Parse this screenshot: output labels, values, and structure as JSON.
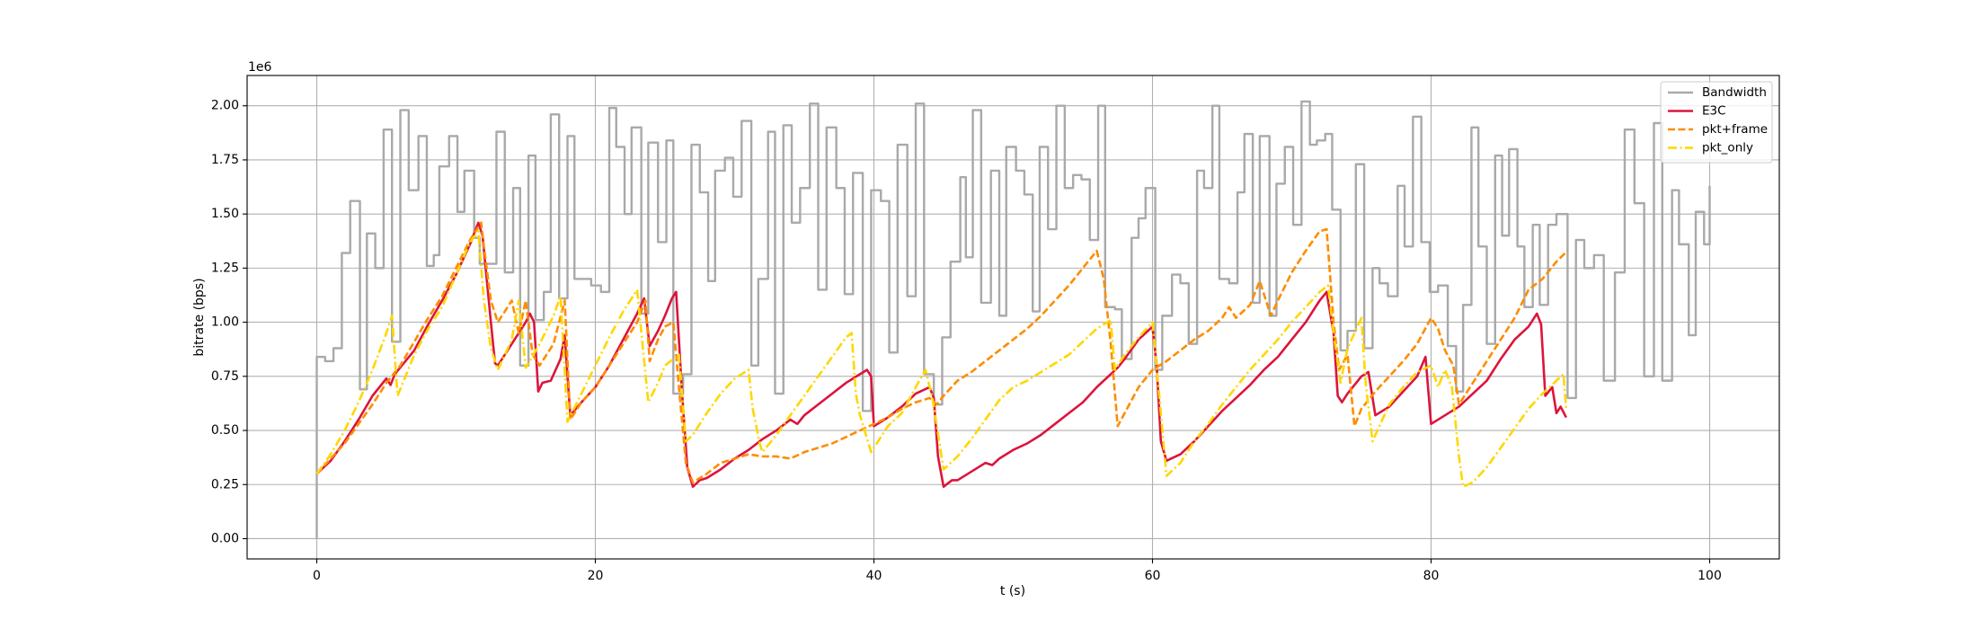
{
  "chart_data": {
    "type": "line",
    "offset_text": "1e6",
    "xlabel": "t (s)",
    "ylabel": "bitrate (bps)",
    "xlim": [
      -5,
      105
    ],
    "ylim": [
      -0.0935,
      2.14
    ],
    "xticks": [
      0,
      20,
      40,
      60,
      80,
      100
    ],
    "yticks": [
      {
        "value": 0,
        "label": "0.00"
      },
      {
        "value": 0.25,
        "label": "0.25"
      },
      {
        "value": 0.5,
        "label": "0.50"
      },
      {
        "value": 0.75,
        "label": "0.75"
      },
      {
        "value": 1,
        "label": "1.00"
      },
      {
        "value": 1.25,
        "label": "1.25"
      },
      {
        "value": 1.5,
        "label": "1.50"
      },
      {
        "value": 1.75,
        "label": "1.75"
      },
      {
        "value": 2,
        "label": "2.00"
      }
    ],
    "grid": true,
    "legend": "upper right",
    "series": [
      {
        "name": "Bandwidth",
        "color": "#a9a9a9",
        "style": "solid",
        "drawstyle": "steps",
        "x": [
          0,
          0,
          0.6,
          1.2,
          1.8,
          2.4,
          3.1,
          3.6,
          4.2,
          4.8,
          5.4,
          6.0,
          6.6,
          7.3,
          7.9,
          8.4,
          8.8,
          9.5,
          10.1,
          10.6,
          11.3,
          11.7,
          12.9,
          13.5,
          14.1,
          14.6,
          15.2,
          15.7,
          16.3,
          16.8,
          17.4,
          18.0,
          18.5,
          19.7,
          20.4,
          21.0,
          21.5,
          22.1,
          22.6,
          23.3,
          23.8,
          24.5,
          25.1,
          25.6,
          26.3,
          26.9,
          27.5,
          28.1,
          28.6,
          29.3,
          29.9,
          30.5,
          31.2,
          31.7,
          32.4,
          32.9,
          33.5,
          34.1,
          34.7,
          35.4,
          36.0,
          36.6,
          37.3,
          37.9,
          38.5,
          39.2,
          39.8,
          40.5,
          41.1,
          41.7,
          42.4,
          43.0,
          43.6,
          44.3,
          44.9,
          45.5,
          46.2,
          46.6,
          47.1,
          47.7,
          48.4,
          49.0,
          49.5,
          50.2,
          50.8,
          51.4,
          51.9,
          52.5,
          53.1,
          53.7,
          54.3,
          54.9,
          55.5,
          56.1,
          56.6,
          57.3,
          57.8,
          58.5,
          59.0,
          59.5,
          60.2,
          60.7,
          61.4,
          62.0,
          62.6,
          63.2,
          63.7,
          64.3,
          64.8,
          65.5,
          66.1,
          66.6,
          67.2,
          67.7,
          68.4,
          68.9,
          69.5,
          70.1,
          70.7,
          71.3,
          71.8,
          72.4,
          72.9,
          73.5,
          74.0,
          74.6,
          75.2,
          75.8,
          76.3,
          76.9,
          77.6,
          78.1,
          78.7,
          79.3,
          79.9,
          80.5,
          81.2,
          81.8,
          82.3,
          82.9,
          83.4,
          84.0,
          84.6,
          85.1,
          85.6,
          86.2,
          86.7,
          87.3,
          87.8,
          88.4,
          89.0,
          89.8,
          90.4,
          91.0,
          91.7,
          92.4,
          93.2,
          93.9,
          94.6,
          95.3,
          96.0,
          96.6,
          97.3,
          97.8,
          98.5,
          99.0,
          99.6,
          100
        ],
        "values": [
          0,
          0.84,
          0.82,
          0.88,
          1.32,
          1.56,
          0.69,
          1.41,
          1.25,
          1.89,
          0.91,
          1.98,
          1.61,
          1.86,
          1.26,
          1.31,
          1.72,
          1.86,
          1.51,
          1.7,
          1.39,
          1.27,
          1.88,
          1.23,
          1.62,
          0.8,
          1.77,
          1.01,
          1.14,
          1.96,
          1.11,
          1.86,
          1.2,
          1.17,
          1.14,
          1.99,
          1.81,
          1.5,
          1.9,
          1.04,
          1.83,
          1.37,
          1.84,
          0.67,
          0.76,
          1.82,
          1.6,
          1.19,
          1.7,
          1.76,
          1.58,
          1.93,
          0.8,
          1.2,
          1.88,
          0.67,
          1.91,
          1.46,
          1.62,
          2.01,
          1.15,
          1.9,
          1.62,
          1.13,
          1.69,
          0.59,
          1.61,
          1.56,
          0.86,
          1.82,
          1.12,
          2.01,
          0.76,
          0.62,
          0.93,
          1.28,
          1.67,
          1.3,
          1.98,
          1.09,
          1.7,
          1.03,
          1.81,
          1.7,
          1.59,
          1.05,
          1.81,
          1.43,
          2.0,
          1.62,
          1.68,
          1.66,
          1.38,
          2.0,
          1.07,
          1.06,
          0.83,
          1.39,
          1.48,
          1.62,
          0.78,
          1.03,
          1.22,
          1.18,
          0.9,
          1.7,
          1.62,
          2.0,
          1.2,
          1.18,
          1.6,
          1.87,
          1.09,
          1.86,
          1.03,
          1.64,
          1.81,
          1.45,
          2.02,
          1.82,
          1.84,
          1.87,
          1.52,
          0.87,
          0.96,
          1.73,
          0.88,
          1.25,
          1.18,
          1.12,
          1.63,
          1.35,
          1.95,
          1.37,
          1.14,
          1.17,
          0.89,
          0.68,
          1.08,
          1.9,
          1.35,
          0.9,
          1.77,
          1.4,
          1.8,
          1.35,
          1.07,
          1.45,
          1.08,
          1.45,
          1.5,
          0.65,
          1.38,
          1.25,
          1.31,
          0.73,
          1.23,
          1.89,
          1.55,
          0.75,
          1.92,
          0.73,
          1.61,
          1.36,
          0.94,
          1.51,
          1.36,
          1.63
        ]
      },
      {
        "name": "E3C",
        "color": "#dc143c",
        "style": "solid",
        "x": [
          0,
          1,
          2,
          3,
          4,
          5,
          5.3,
          5.6,
          7,
          8,
          9,
          10,
          11,
          11.6,
          11.9,
          12.5,
          12.8,
          13,
          14,
          15,
          15.3,
          15.6,
          15.9,
          16.2,
          16.8,
          17.5,
          17.8,
          18.2,
          19,
          20,
          21,
          22,
          23,
          23.5,
          23.9,
          24.5,
          25,
          25.5,
          25.8,
          26.2,
          26.6,
          27,
          27.5,
          28,
          29,
          30,
          31,
          32,
          33,
          34,
          34.5,
          35,
          36,
          37,
          38,
          38.5,
          39,
          39.5,
          39.8,
          40,
          41,
          42,
          43,
          44,
          44.3,
          44.6,
          45,
          45.6,
          46,
          47,
          48,
          48.5,
          49,
          50,
          51,
          52,
          53,
          54,
          55,
          56,
          57,
          57.5,
          58,
          59,
          60,
          60.3,
          60.6,
          61,
          62,
          63,
          64,
          65,
          66,
          67,
          68,
          69,
          70,
          71,
          72,
          72.5,
          73,
          73.3,
          73.6,
          74,
          75,
          75.5,
          76,
          77,
          78,
          79,
          79.6,
          80,
          81,
          82,
          83,
          84,
          85,
          86,
          87,
          87.6,
          87.9,
          88.2,
          88.7,
          89,
          89.3,
          89.7
        ],
        "values": [
          0.3,
          0.36,
          0.45,
          0.55,
          0.66,
          0.74,
          0.71,
          0.76,
          0.87,
          0.99,
          1.1,
          1.22,
          1.36,
          1.46,
          1.4,
          1.0,
          0.81,
          0.8,
          0.9,
          1.0,
          1.04,
          1.0,
          0.68,
          0.72,
          0.73,
          0.83,
          0.94,
          0.57,
          0.63,
          0.7,
          0.8,
          0.92,
          1.04,
          1.11,
          0.89,
          0.96,
          1.03,
          1.11,
          1.14,
          0.7,
          0.33,
          0.24,
          0.27,
          0.28,
          0.32,
          0.37,
          0.41,
          0.46,
          0.5,
          0.55,
          0.53,
          0.57,
          0.62,
          0.67,
          0.72,
          0.74,
          0.76,
          0.78,
          0.75,
          0.52,
          0.56,
          0.61,
          0.67,
          0.7,
          0.65,
          0.38,
          0.24,
          0.27,
          0.27,
          0.31,
          0.35,
          0.34,
          0.37,
          0.41,
          0.44,
          0.48,
          0.53,
          0.58,
          0.63,
          0.7,
          0.76,
          0.79,
          0.83,
          0.92,
          0.98,
          0.8,
          0.45,
          0.36,
          0.39,
          0.45,
          0.52,
          0.59,
          0.65,
          0.71,
          0.78,
          0.84,
          0.92,
          1.0,
          1.1,
          1.14,
          0.95,
          0.66,
          0.63,
          0.67,
          0.75,
          0.77,
          0.57,
          0.61,
          0.68,
          0.75,
          0.84,
          0.53,
          0.57,
          0.61,
          0.67,
          0.73,
          0.83,
          0.92,
          0.98,
          1.04,
          0.99,
          0.66,
          0.7,
          0.58,
          0.61,
          0.56
        ]
      },
      {
        "name": "pkt+frame",
        "color": "#ff8c00",
        "style": "dashed",
        "x": [
          0,
          2,
          4,
          5,
          6,
          7,
          8,
          9,
          10,
          11,
          11.8,
          12,
          12.5,
          13,
          13.5,
          14,
          14.5,
          15,
          15.5,
          16,
          17,
          17.8,
          18.2,
          19,
          20,
          21,
          22,
          23,
          23.6,
          23.9,
          24.5,
          25,
          25.6,
          26,
          26.5,
          27,
          28,
          29,
          30,
          31,
          32,
          33,
          34,
          35,
          36,
          37,
          38,
          39,
          40,
          41,
          42,
          43,
          44,
          44.5,
          45,
          46,
          47,
          48,
          49,
          50,
          51,
          52,
          53,
          54,
          55,
          56,
          56.5,
          57,
          57.5,
          58,
          59,
          60,
          61,
          62,
          63,
          64,
          65,
          65.5,
          66,
          67,
          67.7,
          68.5,
          69,
          70,
          71,
          72,
          72.5,
          73,
          73.4,
          74,
          74.5,
          75,
          76,
          77,
          78,
          79,
          80,
          80.5,
          81,
          81.6,
          82,
          83,
          84,
          85,
          86,
          87,
          88,
          89,
          89.8
        ],
        "values": [
          0.3,
          0.44,
          0.62,
          0.72,
          0.8,
          0.91,
          1.02,
          1.12,
          1.25,
          1.38,
          1.46,
          1.35,
          1.1,
          1.0,
          1.05,
          1.1,
          0.95,
          1.1,
          0.85,
          0.8,
          0.9,
          1.1,
          0.55,
          0.63,
          0.7,
          0.8,
          0.9,
          1.0,
          1.1,
          0.82,
          0.92,
          0.98,
          1.0,
          0.7,
          0.35,
          0.26,
          0.3,
          0.35,
          0.37,
          0.39,
          0.38,
          0.38,
          0.37,
          0.4,
          0.42,
          0.44,
          0.47,
          0.5,
          0.53,
          0.56,
          0.6,
          0.63,
          0.65,
          0.62,
          0.66,
          0.73,
          0.77,
          0.82,
          0.87,
          0.92,
          0.97,
          1.03,
          1.1,
          1.17,
          1.25,
          1.33,
          1.2,
          0.9,
          0.52,
          0.58,
          0.7,
          0.78,
          0.82,
          0.87,
          0.92,
          0.96,
          1.02,
          1.07,
          1.02,
          1.08,
          1.19,
          1.03,
          1.1,
          1.23,
          1.33,
          1.42,
          1.43,
          1.0,
          0.78,
          0.85,
          0.52,
          0.6,
          0.68,
          0.75,
          0.82,
          0.9,
          1.02,
          0.97,
          0.87,
          0.8,
          0.62,
          0.72,
          0.82,
          0.92,
          1.02,
          1.15,
          1.2,
          1.28,
          1.33
        ]
      },
      {
        "name": "pkt_only",
        "color": "#ffd700",
        "style": "dashdot",
        "x": [
          0,
          1,
          2,
          3,
          4,
          5,
          5.4,
          5.8,
          6.5,
          7,
          8,
          9,
          10,
          11,
          11.6,
          12,
          12.5,
          13,
          14,
          14.5,
          15,
          16,
          17,
          17.5,
          18,
          19,
          20,
          21,
          22,
          23,
          23.8,
          24.5,
          25,
          26,
          26.5,
          27,
          28,
          29,
          30,
          31,
          31.3,
          31.8,
          32,
          33,
          34,
          35,
          36,
          37,
          38,
          38.4,
          38.7,
          39,
          39.8,
          40.5,
          41,
          42,
          43,
          43.7,
          44.2,
          45,
          46,
          47,
          48,
          49,
          50,
          51,
          52,
          53,
          54,
          55,
          56,
          57,
          57.3,
          58,
          59,
          60,
          60.5,
          61,
          62,
          63,
          64,
          65,
          66,
          67,
          68,
          69,
          70,
          71,
          72,
          72.6,
          73,
          73.5,
          74,
          75,
          75.3,
          75.8,
          76.5,
          77,
          78,
          79,
          80,
          80.5,
          81,
          81.5,
          82,
          82.3,
          83,
          84,
          85,
          86,
          87,
          88,
          89,
          89.5,
          89.7
        ],
        "values": [
          0.3,
          0.39,
          0.5,
          0.63,
          0.78,
          0.95,
          1.03,
          0.66,
          0.77,
          0.85,
          0.97,
          1.07,
          1.22,
          1.37,
          1.42,
          1.1,
          0.88,
          0.78,
          0.92,
          1.1,
          0.79,
          0.9,
          1.03,
          1.12,
          0.54,
          0.67,
          0.8,
          0.93,
          1.05,
          1.15,
          0.63,
          0.72,
          0.8,
          0.85,
          0.45,
          0.48,
          0.58,
          0.67,
          0.74,
          0.78,
          0.6,
          0.44,
          0.4,
          0.48,
          0.57,
          0.66,
          0.75,
          0.84,
          0.93,
          0.95,
          0.67,
          0.57,
          0.4,
          0.47,
          0.52,
          0.58,
          0.7,
          0.78,
          0.65,
          0.32,
          0.38,
          0.46,
          0.55,
          0.64,
          0.7,
          0.73,
          0.77,
          0.81,
          0.85,
          0.91,
          0.97,
          1.01,
          0.78,
          0.85,
          0.93,
          1.0,
          0.65,
          0.29,
          0.35,
          0.45,
          0.53,
          0.62,
          0.7,
          0.78,
          0.85,
          0.92,
          1.0,
          1.07,
          1.14,
          1.17,
          0.95,
          0.72,
          0.88,
          1.02,
          0.72,
          0.45,
          0.55,
          0.62,
          0.7,
          0.77,
          0.8,
          0.7,
          0.78,
          0.7,
          0.38,
          0.24,
          0.26,
          0.33,
          0.42,
          0.51,
          0.6,
          0.67,
          0.73,
          0.76,
          0.6
        ]
      }
    ]
  }
}
